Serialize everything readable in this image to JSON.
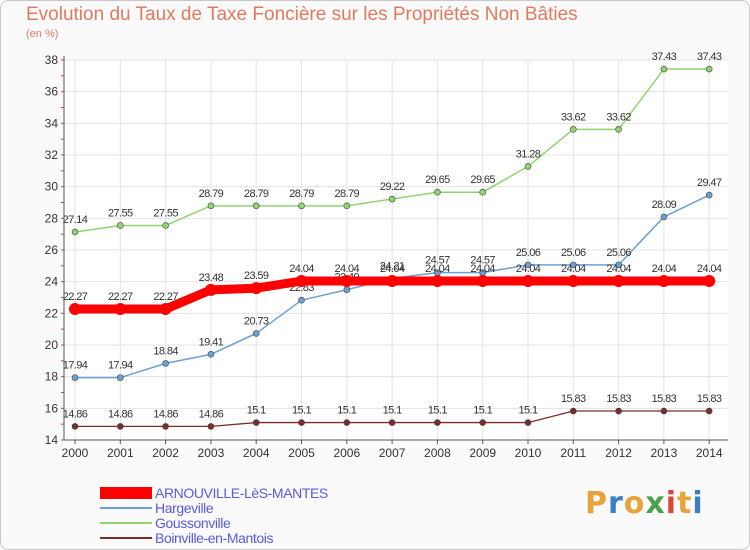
{
  "header": {
    "title": "Evolution du Taux de Taxe Foncière sur les Propriétés Non Bâties",
    "subtitle": "(en %)"
  },
  "logo": {
    "text": "Proxiti",
    "letters": [
      "P",
      "r",
      "o",
      "x",
      "i",
      "t",
      "i"
    ],
    "colors": [
      "#e8a33a",
      "#3b7fc4",
      "#e8a33a",
      "#4aa14a",
      "#d9473a",
      "#e8a33a",
      "#3b7fc4"
    ]
  },
  "chart_data": {
    "type": "line",
    "title": "Evolution du Taux de Taxe Foncière sur les Propriétés Non Bâties",
    "ylabel": "(en %)",
    "xlabel": "",
    "x": [
      "2000",
      "2001",
      "2002",
      "2003",
      "2004",
      "2005",
      "2006",
      "2007",
      "2008",
      "2009",
      "2010",
      "2011",
      "2012",
      "2013",
      "2014"
    ],
    "ylim": [
      14,
      38
    ],
    "yticks": [
      "14",
      "16",
      "18",
      "20",
      "22",
      "24",
      "26",
      "28",
      "30",
      "32",
      "34",
      "36",
      "38"
    ],
    "ytick_values": [
      14,
      16,
      18,
      20,
      22,
      24,
      26,
      28,
      30,
      32,
      34,
      36,
      38
    ],
    "grid": true,
    "legend_position": "bottom-left",
    "series": [
      {
        "name": "Boinville-en-Mantois",
        "color": "#7b2c2c",
        "width": 1.3,
        "values": [
          14.86,
          14.86,
          14.86,
          14.86,
          15.1,
          15.1,
          15.1,
          15.1,
          15.1,
          15.1,
          15.1,
          15.83,
          15.83,
          15.83,
          15.83
        ],
        "labels": [
          "14.86",
          "14.86",
          "14.86",
          "14.86",
          "15.1",
          "15.1",
          "15.1",
          "15.1",
          "15.1",
          "15.1",
          "15.1",
          "15.83",
          "15.83",
          "15.83",
          "15.83"
        ]
      },
      {
        "name": "Goussonville",
        "color": "#8fd470",
        "width": 1.5,
        "values": [
          27.14,
          27.55,
          27.55,
          28.79,
          28.79,
          28.79,
          28.79,
          29.22,
          29.65,
          29.65,
          31.28,
          33.62,
          33.62,
          37.43,
          37.43
        ],
        "labels": [
          "27.14",
          "27.55",
          "27.55",
          "28.79",
          "28.79",
          "28.79",
          "28.79",
          "29.22",
          "29.65",
          "29.65",
          "31.28",
          "33.62",
          "33.62",
          "37.43",
          "37.43"
        ]
      },
      {
        "name": "Hargeville",
        "color": "#6aa0d4",
        "width": 1.5,
        "values": [
          17.94,
          17.94,
          18.84,
          19.41,
          20.73,
          22.83,
          23.49,
          24.21,
          24.57,
          24.57,
          25.06,
          25.06,
          25.06,
          28.09,
          29.47
        ],
        "labels": [
          "17.94",
          "17.94",
          "18.84",
          "19.41",
          "20.73",
          "22.83",
          "23.49",
          "24.21",
          "24.57",
          "24.57",
          "25.06",
          "25.06",
          "25.06",
          "28.09",
          "29.47"
        ]
      },
      {
        "name": "ARNOUVILLE-LèS-MANTES",
        "color": "#ff0000",
        "width": 9,
        "values": [
          22.27,
          22.27,
          22.27,
          23.48,
          23.59,
          24.04,
          24.04,
          24.04,
          24.04,
          24.04,
          24.04,
          24.04,
          24.04,
          24.04,
          24.04
        ],
        "labels": [
          "22.27",
          "22.27",
          "22.27",
          "23.48",
          "23.59",
          "24.04",
          "24.04",
          "24.04",
          "24.04",
          "24.04",
          "24.04",
          "24.04",
          "24.04",
          "24.04",
          "24.04"
        ]
      }
    ],
    "legend": [
      {
        "name": "ARNOUVILLE-LèS-MANTES",
        "color": "#ff0000",
        "thick": true
      },
      {
        "name": "Hargeville",
        "color": "#6aa0d4",
        "thick": false
      },
      {
        "name": "Goussonville",
        "color": "#8fd470",
        "thick": false
      },
      {
        "name": "Boinville-en-Mantois",
        "color": "#7b2c2c",
        "thick": false
      }
    ]
  }
}
